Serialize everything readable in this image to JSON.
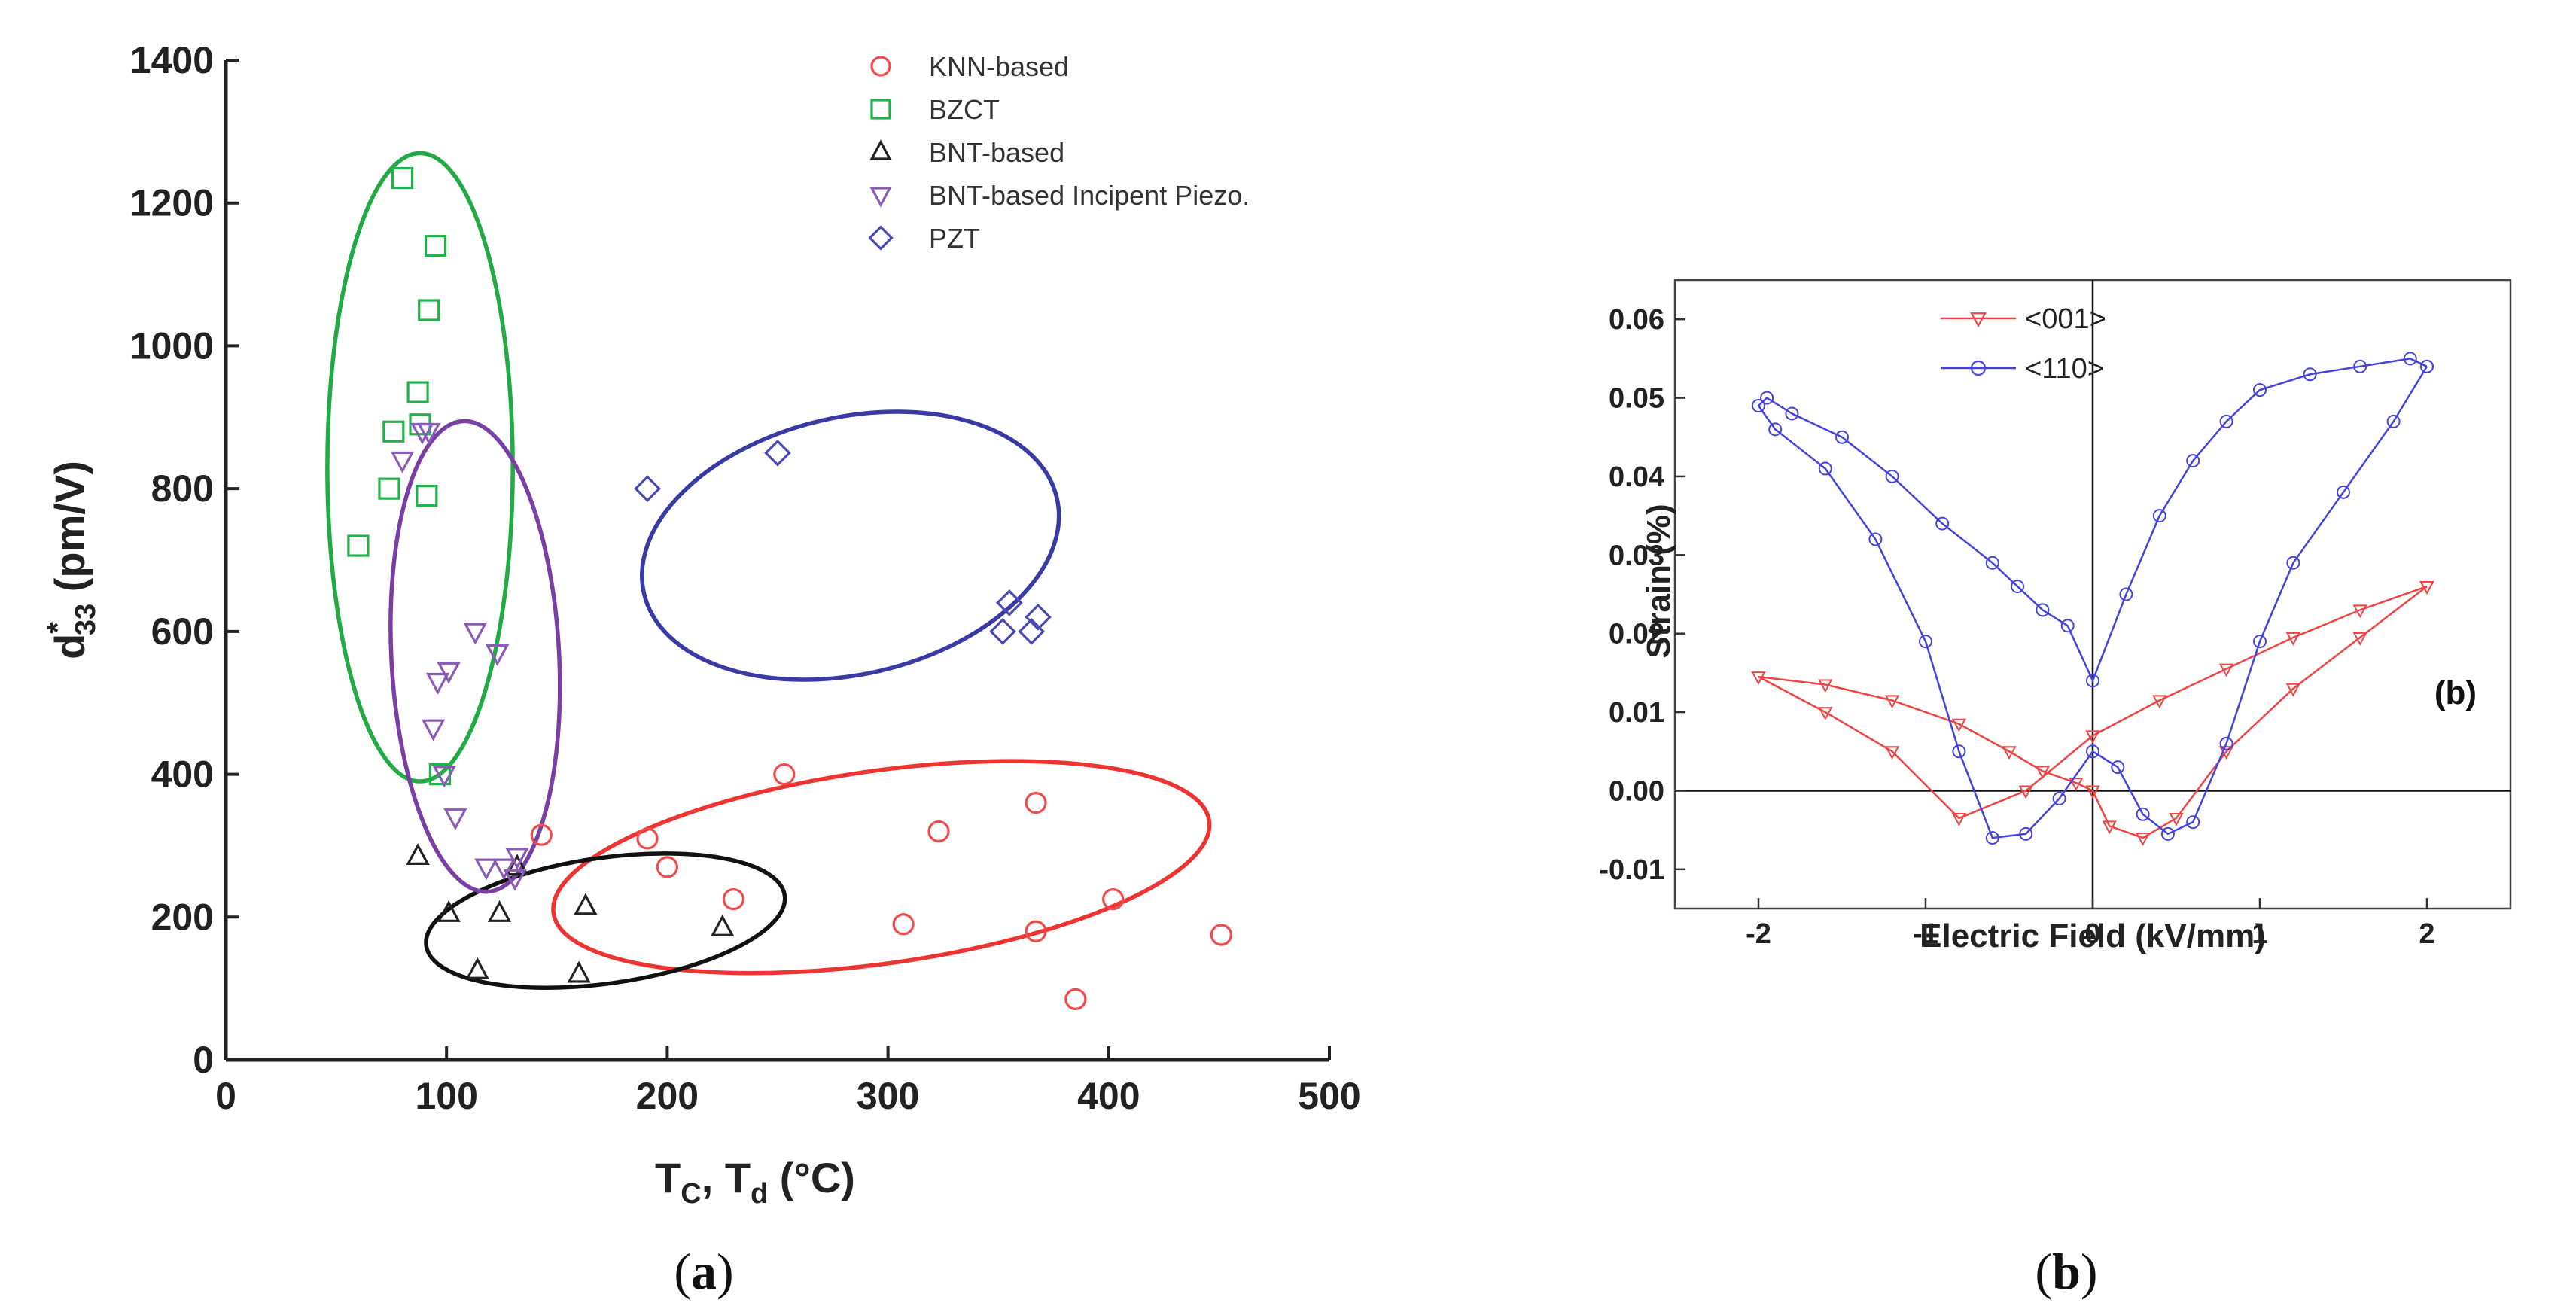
{
  "chart_data": [
    {
      "type": "scatter",
      "panel": "a",
      "caption": {
        "open": "(",
        "letter": "a",
        "close": ")"
      },
      "xlabel": {
        "main": "T",
        "sub1": "C",
        "sep": ", T",
        "sub2": "d",
        "unit": " (°C)"
      },
      "ylabel": {
        "main": "d",
        "sup": "*",
        "sub": "33",
        "unit": " (pm/V)"
      },
      "xlim": [
        0,
        500
      ],
      "ylim": [
        0,
        1400
      ],
      "xticks": [
        0,
        100,
        200,
        300,
        400,
        500
      ],
      "yticks": [
        0,
        200,
        400,
        600,
        800,
        1000,
        1200,
        1400
      ],
      "legend_position": "top-right",
      "series": [
        {
          "name": "KNN-based",
          "marker": "circle",
          "color": "#f04a4a",
          "points": [
            [
              143,
              315
            ],
            [
              191,
              310
            ],
            [
              200,
              270
            ],
            [
              230,
              225
            ],
            [
              253,
              400
            ],
            [
              307,
              190
            ],
            [
              323,
              320
            ],
            [
              367,
              360
            ],
            [
              367,
              180
            ],
            [
              385,
              85
            ],
            [
              402,
              225
            ],
            [
              451,
              175
            ]
          ]
        },
        {
          "name": "BZCT",
          "marker": "square",
          "color": "#22b24c",
          "points": [
            [
              60,
              720
            ],
            [
              74,
              800
            ],
            [
              76,
              880
            ],
            [
              80,
              1235
            ],
            [
              87,
              935
            ],
            [
              88,
              890
            ],
            [
              91,
              790
            ],
            [
              92,
              1050
            ],
            [
              95,
              1140
            ],
            [
              97,
              400
            ]
          ]
        },
        {
          "name": "BNT-based",
          "marker": "triangle-up",
          "color": "#222222",
          "points": [
            [
              87,
              285
            ],
            [
              101,
              205
            ],
            [
              114,
              125
            ],
            [
              124,
              205
            ],
            [
              132,
              270
            ],
            [
              160,
              120
            ],
            [
              163,
              215
            ],
            [
              225,
              185
            ]
          ]
        },
        {
          "name": "BNT-based Incipent Piezo.",
          "marker": "triangle-down",
          "color": "#8a5cb5",
          "points": [
            [
              80,
              840
            ],
            [
              89,
              880
            ],
            [
              92,
              880
            ],
            [
              94,
              465
            ],
            [
              96,
              530
            ],
            [
              101,
              545
            ],
            [
              99,
              400
            ],
            [
              104,
              340
            ],
            [
              113,
              600
            ],
            [
              123,
              570
            ],
            [
              118,
              270
            ],
            [
              126,
              270
            ],
            [
              131,
              255
            ],
            [
              132,
              285
            ]
          ]
        },
        {
          "name": "PZT",
          "marker": "diamond",
          "color": "#4a4ab5",
          "points": [
            [
              191,
              800
            ],
            [
              250,
              850
            ],
            [
              352,
              600
            ],
            [
              355,
              640
            ],
            [
              365,
              600
            ],
            [
              368,
              620
            ]
          ]
        }
      ],
      "ellipses": [
        {
          "group": "KNN-based",
          "color": "#ee3333",
          "center": [
            297,
            270
          ],
          "semi_axes": [
            150,
            135
          ],
          "angle_deg": -8
        },
        {
          "group": "BZCT",
          "color": "#22aa44",
          "center": [
            88,
            830
          ],
          "semi_axes": [
            42,
            440
          ],
          "angle_deg": 0
        },
        {
          "group": "BNT-based",
          "color": "#111111",
          "center": [
            172,
            195
          ],
          "semi_axes": [
            82,
            88
          ],
          "angle_deg": -8
        },
        {
          "group": "BNT-based Incipent Piezo.",
          "color": "#7a3fa5",
          "center": [
            113,
            565
          ],
          "semi_axes": [
            38,
            330
          ],
          "angle_deg": -3
        },
        {
          "group": "PZT",
          "color": "#3a3aa5",
          "center": [
            283,
            720
          ],
          "semi_axes": [
            96,
            180
          ],
          "angle_deg": -13
        }
      ]
    },
    {
      "type": "line",
      "panel": "b",
      "caption": {
        "open": "(",
        "letter": "b",
        "close": ")"
      },
      "annotation": "(b)",
      "xlabel": "Electric Field (kV/mm)",
      "ylabel": "Strain (%)",
      "xlim": [
        -2.5,
        2.5
      ],
      "ylim": [
        -0.015,
        0.065
      ],
      "xticks": [
        -2,
        -1,
        0,
        1,
        2
      ],
      "yticks": [
        -0.01,
        0.0,
        0.01,
        0.02,
        0.03,
        0.04,
        0.05,
        0.06
      ],
      "xtick_labels": [
        "-2",
        "-1",
        "0",
        "1",
        "2"
      ],
      "ytick_labels": [
        "-0.01",
        "0.00",
        "0.01",
        "0.02",
        "0.03",
        "0.04",
        "0.05",
        "0.06"
      ],
      "legend_position": "top-left",
      "series": [
        {
          "name": "<001>",
          "marker": "triangle-down",
          "color": "#ee4444",
          "x": [
            2.0,
            1.6,
            1.2,
            0.8,
            0.4,
            0.0,
            -0.4,
            -0.8,
            -1.2,
            -1.6,
            -2.0,
            -1.6,
            -1.2,
            -0.8,
            -0.5,
            -0.3,
            -0.1,
            0.0,
            0.1,
            0.3,
            0.5,
            0.8,
            1.2,
            1.6,
            2.0
          ],
          "y": [
            0.026,
            0.023,
            0.0195,
            0.0155,
            0.0115,
            0.007,
            0.0,
            -0.0035,
            0.005,
            0.01,
            0.0145,
            0.0135,
            0.0115,
            0.0085,
            0.005,
            0.0025,
            0.001,
            0.0,
            -0.0045,
            -0.006,
            -0.0035,
            0.005,
            0.013,
            0.0195,
            0.026
          ]
        },
        {
          "name": "<110>",
          "marker": "circle",
          "color": "#4444dd",
          "x": [
            2.0,
            1.8,
            1.5,
            1.2,
            1.0,
            0.8,
            0.6,
            0.45,
            0.3,
            0.15,
            0.0,
            -0.2,
            -0.4,
            -0.6,
            -0.8,
            -1.0,
            -1.3,
            -1.6,
            -1.9,
            -2.0,
            -1.95,
            -1.8,
            -1.5,
            -1.2,
            -0.9,
            -0.6,
            -0.45,
            -0.3,
            -0.15,
            0.0,
            0.2,
            0.4,
            0.6,
            0.8,
            1.0,
            1.3,
            1.6,
            1.9,
            2.0
          ],
          "y": [
            0.054,
            0.047,
            0.038,
            0.029,
            0.019,
            0.006,
            -0.004,
            -0.0055,
            -0.003,
            0.003,
            0.005,
            -0.001,
            -0.0055,
            -0.006,
            0.005,
            0.019,
            0.032,
            0.041,
            0.046,
            0.049,
            0.05,
            0.048,
            0.045,
            0.04,
            0.034,
            0.029,
            0.026,
            0.023,
            0.021,
            0.014,
            0.025,
            0.035,
            0.042,
            0.047,
            0.051,
            0.053,
            0.054,
            0.055,
            0.054
          ]
        }
      ]
    }
  ]
}
